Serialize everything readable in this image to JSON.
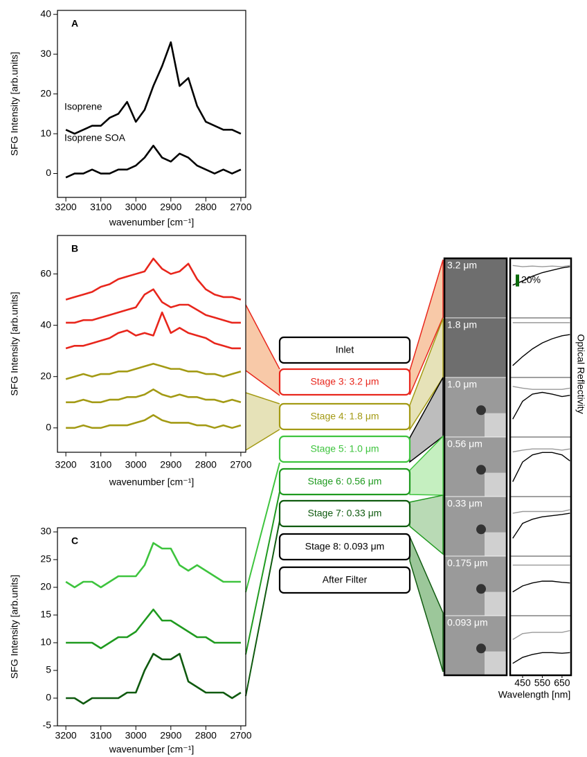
{
  "chart_data": [
    {
      "type": "line",
      "panel_label": "A",
      "ylabel": "SFG Intensity [arb.units]",
      "xlabel": "wavenumber [cm⁻¹]",
      "x": [
        3200,
        3175,
        3150,
        3125,
        3100,
        3075,
        3050,
        3025,
        3000,
        2975,
        2950,
        2925,
        2900,
        2875,
        2850,
        2825,
        2800,
        2775,
        2750,
        2725,
        2700
      ],
      "xlim": [
        3224,
        2686
      ],
      "xticks": [
        3200,
        3100,
        3000,
        2900,
        2800,
        2700
      ],
      "ylim": [
        -6,
        41
      ],
      "yticks": [
        0,
        10,
        20,
        30,
        40
      ],
      "annotations": [
        "Isoprene",
        "Isoprene SOA"
      ],
      "series": [
        {
          "color": "#000000",
          "values": [
            11,
            10,
            11,
            12,
            12,
            14,
            15,
            18,
            13,
            16,
            22,
            27,
            33,
            22,
            24,
            17,
            13,
            12,
            11,
            11,
            10
          ]
        },
        {
          "color": "#000000",
          "values": [
            -1,
            0,
            0,
            1,
            0,
            0,
            1,
            1,
            2,
            4,
            7,
            4,
            3,
            5,
            4,
            2,
            1,
            0,
            1,
            0,
            1
          ]
        }
      ]
    },
    {
      "type": "line",
      "panel_label": "B",
      "ylabel": "SFG Intensity [arb.units]",
      "xlabel": "wavenumber [cm⁻¹]",
      "x": [
        3200,
        3175,
        3150,
        3125,
        3100,
        3075,
        3050,
        3025,
        3000,
        2975,
        2950,
        2925,
        2900,
        2875,
        2850,
        2825,
        2800,
        2775,
        2750,
        2725,
        2700
      ],
      "xlim": [
        3224,
        2686
      ],
      "xticks": [
        3200,
        3100,
        3000,
        2900,
        2800,
        2700
      ],
      "ylim": [
        -9.5,
        75
      ],
      "yticks": [
        0,
        20,
        40,
        60
      ],
      "annotations": [],
      "series": [
        {
          "color": "#e8261c",
          "values": [
            50,
            51,
            52,
            53,
            55,
            56,
            58,
            59,
            60,
            61,
            66,
            62,
            60,
            61,
            64,
            58,
            54,
            52,
            51,
            51,
            50
          ]
        },
        {
          "color": "#e8261c",
          "values": [
            41,
            41,
            42,
            42,
            43,
            44,
            45,
            46,
            47,
            52,
            54,
            49,
            47,
            48,
            48,
            46,
            44,
            43,
            42,
            41,
            41
          ]
        },
        {
          "color": "#e8261c",
          "values": [
            31,
            32,
            32,
            33,
            34,
            35,
            37,
            38,
            36,
            37,
            36,
            45,
            37,
            39,
            37,
            36,
            35,
            33,
            32,
            31,
            31
          ]
        },
        {
          "color": "#a39a14",
          "values": [
            19,
            20,
            21,
            20,
            21,
            21,
            22,
            22,
            23,
            24,
            25,
            24,
            23,
            23,
            22,
            22,
            21,
            21,
            20,
            21,
            22
          ]
        },
        {
          "color": "#a39a14",
          "values": [
            10,
            10,
            11,
            10,
            10,
            11,
            11,
            12,
            12,
            13,
            15,
            13,
            12,
            13,
            12,
            12,
            11,
            11,
            10,
            11,
            10
          ]
        },
        {
          "color": "#a39a14",
          "values": [
            0,
            0,
            1,
            0,
            0,
            1,
            1,
            1,
            2,
            3,
            5,
            3,
            2,
            2,
            2,
            1,
            1,
            0,
            1,
            0,
            1
          ]
        }
      ]
    },
    {
      "type": "line",
      "panel_label": "C",
      "ylabel": "SFG Intensity [arb.units]",
      "xlabel": "wavenumber [cm⁻¹]",
      "x": [
        3200,
        3175,
        3150,
        3125,
        3100,
        3075,
        3050,
        3025,
        3000,
        2975,
        2950,
        2925,
        2900,
        2875,
        2850,
        2825,
        2800,
        2775,
        2750,
        2725,
        2700
      ],
      "xlim": [
        3224,
        2686
      ],
      "xticks": [
        3200,
        3100,
        3000,
        2900,
        2800,
        2700
      ],
      "ylim": [
        -5,
        30.75
      ],
      "yticks": [
        -5,
        0,
        5,
        10,
        15,
        20,
        25,
        30
      ],
      "annotations": [],
      "series": [
        {
          "color": "#3ec43e",
          "values": [
            21,
            20,
            21,
            21,
            20,
            21,
            22,
            22,
            22,
            24,
            28,
            27,
            27,
            24,
            23,
            24,
            23,
            22,
            21,
            21,
            21
          ]
        },
        {
          "color": "#1f9a1f",
          "values": [
            10,
            10,
            10,
            10,
            9,
            10,
            11,
            11,
            12,
            14,
            16,
            14,
            14,
            13,
            12,
            11,
            11,
            10,
            10,
            10,
            10
          ]
        },
        {
          "color": "#0f5a0f",
          "values": [
            0,
            0,
            -1,
            0,
            0,
            0,
            0,
            1,
            1,
            5,
            8,
            7,
            7,
            8,
            3,
            2,
            1,
            1,
            1,
            0,
            1
          ]
        }
      ]
    },
    {
      "type": "reflectivity",
      "xlabel": "Wavelength [nm]",
      "ylabel": "Optical Reflectivity",
      "x": [
        400,
        450,
        500,
        550,
        600,
        650,
        690
      ],
      "xlim": [
        387,
        696
      ],
      "xticks": [
        450,
        550,
        650
      ],
      "ylim": [
        0,
        100
      ],
      "scale_bar": {
        "value": 20,
        "label": "20%",
        "color": "#0a6a0a"
      },
      "panels": [
        {
          "series": [
            {
              "color": "#999999",
              "values": [
                88,
                86,
                87,
                86,
                87,
                86,
                88
              ]
            },
            {
              "color": "#000000",
              "values": [
                55,
                62,
                70,
                76,
                80,
                84,
                86
              ]
            }
          ]
        },
        {
          "series": [
            {
              "color": "#999999",
              "values": [
                92,
                92,
                92,
                92,
                92,
                92,
                92
              ]
            },
            {
              "color": "#000000",
              "values": [
                20,
                35,
                48,
                58,
                65,
                70,
                72
              ]
            }
          ]
        },
        {
          "series": [
            {
              "color": "#999999",
              "values": [
                85,
                82,
                80,
                80,
                80,
                80,
                82
              ]
            },
            {
              "color": "#000000",
              "values": [
                30,
                60,
                72,
                75,
                72,
                68,
                70
              ]
            }
          ]
        },
        {
          "series": [
            {
              "color": "#999999",
              "values": [
                75,
                78,
                80,
                80,
                80,
                78,
                80
              ]
            },
            {
              "color": "#000000",
              "values": [
                25,
                58,
                70,
                74,
                74,
                70,
                60
              ]
            }
          ]
        },
        {
          "series": [
            {
              "color": "#999999",
              "values": [
                72,
                75,
                75,
                75,
                75,
                75,
                78
              ]
            },
            {
              "color": "#000000",
              "values": [
                30,
                55,
                62,
                66,
                68,
                70,
                72
              ]
            }
          ]
        },
        {
          "series": [
            {
              "color": "#999999",
              "values": [
                85,
                85,
                85,
                85,
                85,
                85,
                85
              ]
            },
            {
              "color": "#000000",
              "values": [
                40,
                50,
                55,
                58,
                58,
                56,
                55
              ]
            }
          ]
        },
        {
          "series": [
            {
              "color": "#999999",
              "values": [
                60,
                70,
                72,
                72,
                72,
                72,
                75
              ]
            },
            {
              "color": "#000000",
              "values": [
                20,
                30,
                35,
                38,
                38,
                37,
                38
              ]
            }
          ]
        }
      ]
    }
  ],
  "diagram": {
    "stages": [
      {
        "label": "Inlet",
        "color": "#000000"
      },
      {
        "label": "Stage 3: 3.2 μm",
        "color": "#e8261c"
      },
      {
        "label": "Stage 4: 1.8 μm",
        "color": "#a39a14"
      },
      {
        "label": "Stage 5: 1.0 μm",
        "color": "#3ec43e"
      },
      {
        "label": "Stage 6: 0.56 μm",
        "color": "#1f9a1f"
      },
      {
        "label": "Stage 7: 0.33 μm",
        "color": "#0f5a0f"
      },
      {
        "label": "Stage 8: 0.093 μm",
        "color": "#000000"
      },
      {
        "label": "After Filter",
        "color": "#000000"
      }
    ],
    "micrographs": [
      "3.2 μm",
      "1.8 μm",
      "1.0 μm",
      "0.56 μm",
      "0.33 μm",
      "0.175 μm",
      "0.093 μm"
    ]
  }
}
